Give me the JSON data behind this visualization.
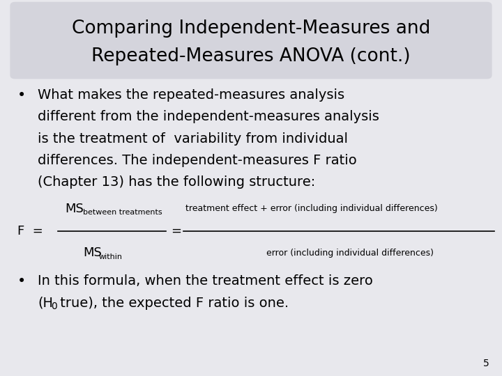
{
  "background_color": "#e8e8ed",
  "title_line1": "Comparing Independent-Measures and",
  "title_line2": "Repeated-Measures ANOVA (cont.)",
  "title_fontsize": 19,
  "title_color": "#000000",
  "bullet1_lines": [
    "What makes the repeated-measures analysis",
    "different from the independent-measures analysis",
    "is the treatment of  variability from individual",
    "differences. The independent-measures F ratio",
    "(Chapter 13) has the following structure:"
  ],
  "bullet1_fontsize": 14,
  "bullet2_line1": "In this formula, when the treatment effect is zero",
  "bullet2_line2a": "(H",
  "bullet2_line2b": "0",
  "bullet2_line2c": " true), the expected F ratio is one.",
  "bullet2_fontsize": 14,
  "formula_main_fontsize": 13,
  "formula_sub_fontsize": 8,
  "formula_label_fontsize": 9,
  "page_number": "5",
  "text_color": "#000000",
  "title_bg_color": "#d4d4dc"
}
